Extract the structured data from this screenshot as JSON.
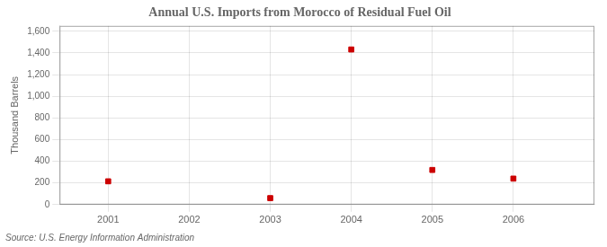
{
  "chart_data": {
    "type": "scatter",
    "title": "Annual U.S. Imports from Morocco of Residual Fuel Oil",
    "ylabel": "Thousand Barrels",
    "source": "Source: U.S. Energy Information Administration",
    "x": [
      2001,
      2003,
      2004,
      2005,
      2006
    ],
    "values": [
      215,
      60,
      1432,
      320,
      240
    ],
    "color": "#cc0000",
    "marker": "square",
    "xlim": [
      2000.4,
      2007.0
    ],
    "ylim": [
      0,
      1650
    ],
    "xticks": [
      2001,
      2002,
      2003,
      2004,
      2005,
      2006
    ],
    "yticks": [
      0,
      200,
      400,
      600,
      800,
      {
        "value": 1000,
        "label": "1,000"
      },
      {
        "value": 1200,
        "label": "1,200"
      },
      {
        "value": 1400,
        "label": "1,400"
      },
      {
        "value": 1600,
        "label": "1,600"
      }
    ],
    "grid": true
  }
}
